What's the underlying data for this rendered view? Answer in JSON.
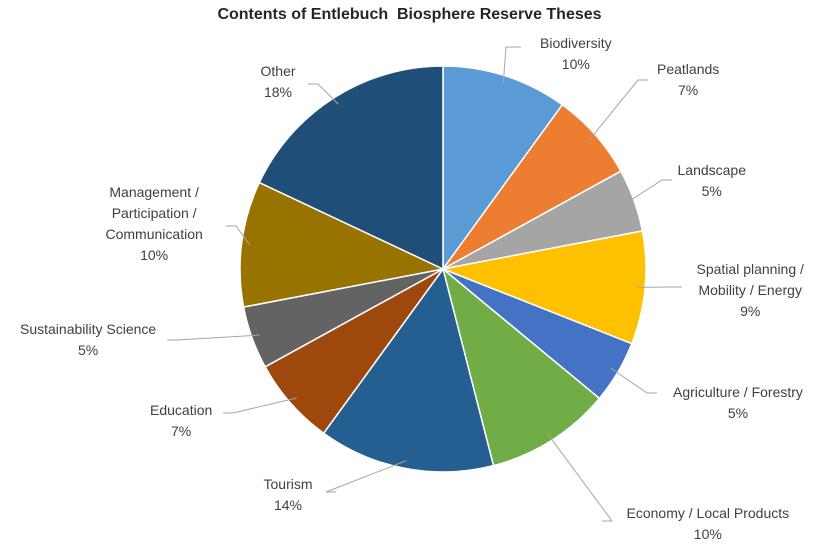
{
  "chart_data": {
    "type": "pie",
    "title": "Contents of Entlebuch  Biosphere Reserve Theses",
    "slices": [
      {
        "label": "Biodiversity",
        "value": 10,
        "value_label": "10%",
        "color": "#5B9BD5"
      },
      {
        "label": "Peatlands",
        "value": 7,
        "value_label": "7%",
        "color": "#ED7D31"
      },
      {
        "label": "Landscape",
        "value": 5,
        "value_label": "5%",
        "color": "#A5A5A5"
      },
      {
        "label": "Spatial planning / Mobility / Energy",
        "value": 9,
        "value_label": "9%",
        "color": "#FFC000"
      },
      {
        "label": "Agriculture / Forestry",
        "value": 5,
        "value_label": "5%",
        "color": "#4472C4"
      },
      {
        "label": "Economy / Local Products",
        "value": 10,
        "value_label": "10%",
        "color": "#70AD47"
      },
      {
        "label": "Tourism",
        "value": 14,
        "value_label": "14%",
        "color": "#255E91"
      },
      {
        "label": "Education",
        "value": 7,
        "value_label": "7%",
        "color": "#9E480E"
      },
      {
        "label": "Sustainability Science",
        "value": 5,
        "value_label": "5%",
        "color": "#636363"
      },
      {
        "label": "Management / Participation / Communication",
        "value": 10,
        "value_label": "10%",
        "color": "#997300"
      },
      {
        "label": "Other",
        "value": 18,
        "value_label": "18%",
        "color": "#1F4E79"
      }
    ],
    "legend": "none"
  }
}
